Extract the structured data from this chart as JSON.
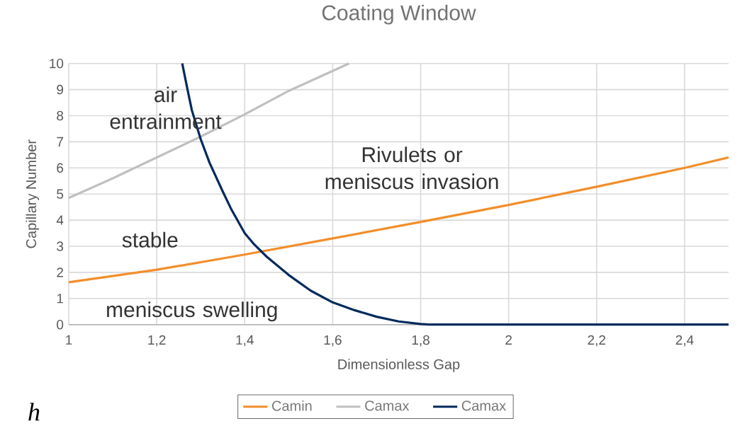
{
  "chart_data": {
    "type": "line",
    "title": "Coating Window",
    "xlabel": "Dimensionless Gap",
    "ylabel": "Capillary Number",
    "xlim": [
      1,
      2.5
    ],
    "ylim": [
      0,
      10
    ],
    "xticks": [
      1,
      {
        "value": 1.2,
        "label": "1,2"
      },
      {
        "value": 1.4,
        "label": "1,4"
      },
      {
        "value": 1.6,
        "label": "1,6"
      },
      {
        "value": 1.8,
        "label": "1,8"
      },
      2,
      {
        "value": 2.2,
        "label": "2,2"
      },
      {
        "value": 2.4,
        "label": "2,4"
      }
    ],
    "yticks": [
      0,
      1,
      2,
      3,
      4,
      5,
      6,
      7,
      8,
      9,
      10
    ],
    "grid": true,
    "legend": "bottom",
    "marker": "none",
    "line_style": "solid",
    "series": [
      {
        "name": "Camin",
        "color": "#f28e2b",
        "x": [
          1,
          1.2,
          1.4,
          1.6,
          1.8,
          2.0,
          2.2,
          2.4,
          2.5
        ],
        "values": [
          1.62,
          2.1,
          2.68,
          3.3,
          3.93,
          4.58,
          5.28,
          6.0,
          6.4
        ]
      },
      {
        "name": "Camax",
        "color": "#c0c0c0",
        "x": [
          1,
          1.1,
          1.2,
          1.3,
          1.4,
          1.5,
          1.637
        ],
        "values": [
          4.85,
          5.6,
          6.4,
          7.2,
          8.05,
          8.95,
          10
        ]
      },
      {
        "name": "Camax",
        "color": "#002a5c",
        "x": [
          1.258,
          1.27,
          1.28,
          1.3,
          1.32,
          1.35,
          1.37,
          1.4,
          1.42,
          1.45,
          1.5,
          1.55,
          1.6,
          1.65,
          1.7,
          1.75,
          1.8,
          1.82,
          2.5
        ],
        "values": [
          10,
          9.0,
          8.2,
          7.1,
          6.2,
          5.1,
          4.4,
          3.5,
          3.1,
          2.6,
          1.9,
          1.3,
          0.85,
          0.55,
          0.3,
          0.12,
          0.02,
          0,
          0
        ]
      }
    ],
    "annotations": [
      "air entrainment",
      "Rivulets or meniscus invasion",
      "stable",
      "meniscus swelling",
      "h"
    ]
  }
}
